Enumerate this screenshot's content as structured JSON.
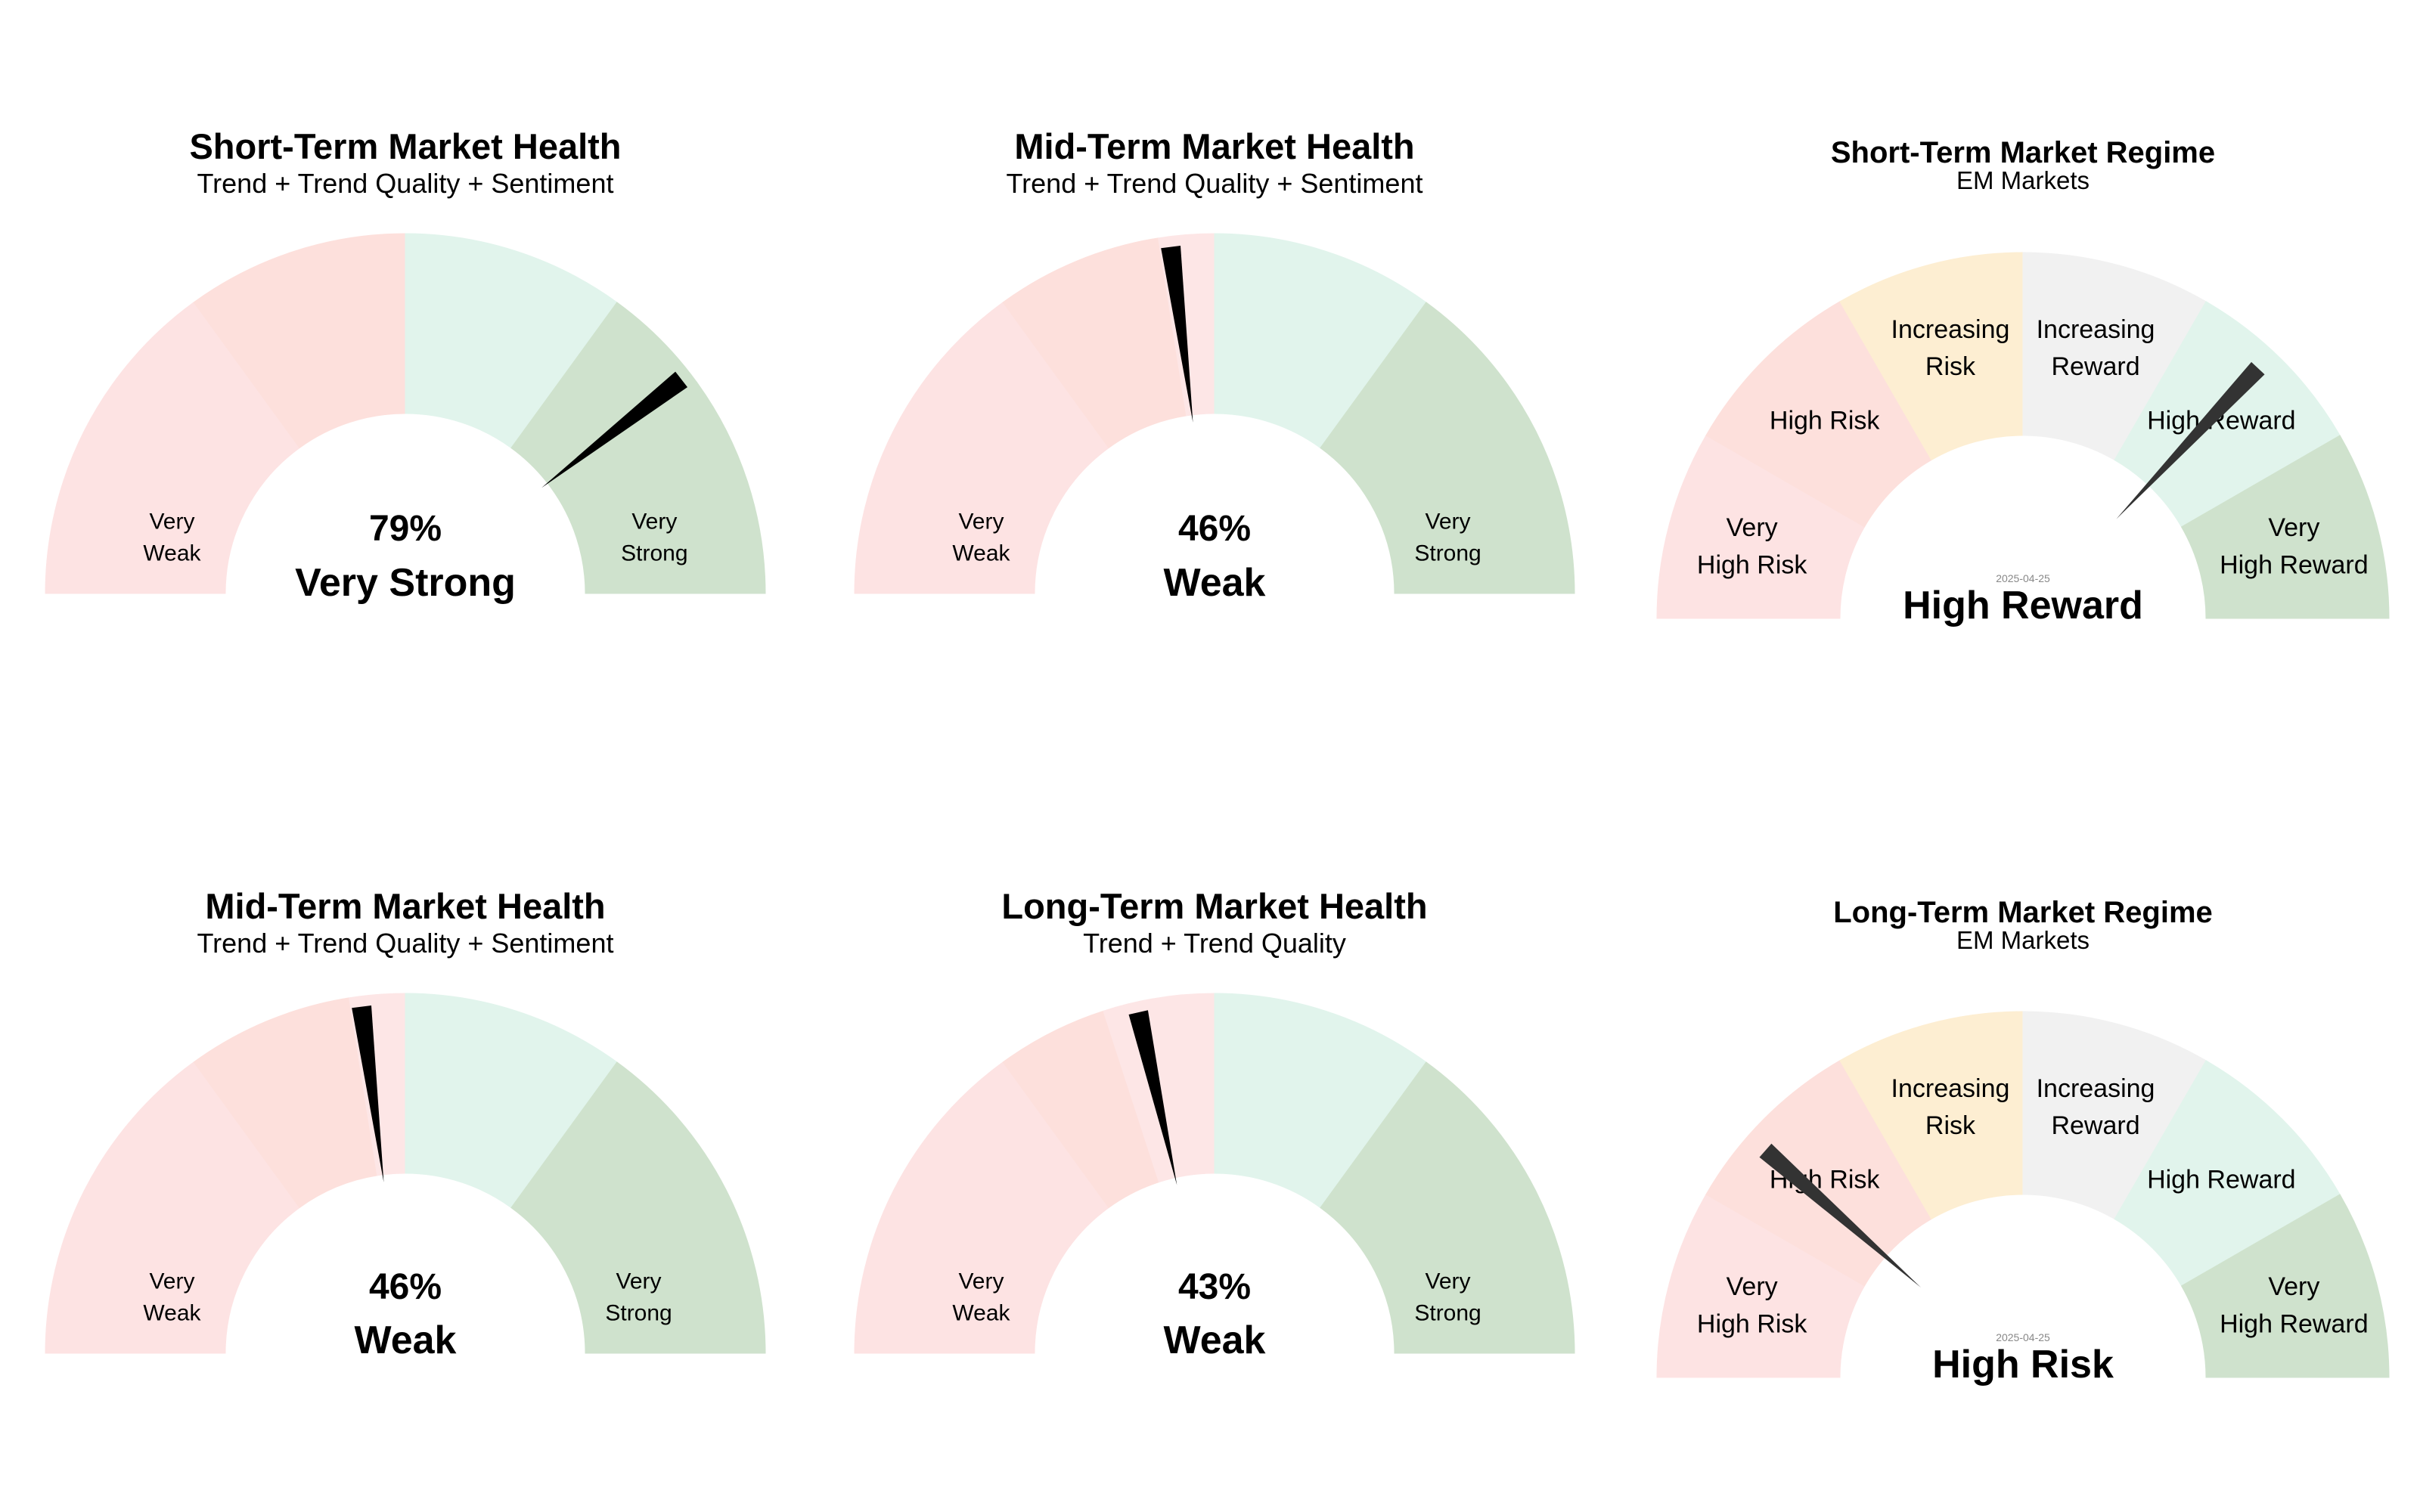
{
  "colors": {
    "very_weak": "#fde3e3",
    "weak": "#fde0dc",
    "neutral": "#fde6e6",
    "strong": "#e1f4ec",
    "very_strong": "#cfe2cd",
    "regime_very_high_risk": "#fde3e3",
    "regime_high_risk": "#fde0dc",
    "regime_increasing_risk": "#fdeed2",
    "regime_increasing_reward": "#f1f1f1",
    "regime_high_reward": "#e1f4ec",
    "regime_very_high_reward": "#cfe2cd",
    "needle_health": "#000000",
    "needle_regime": "#333333"
  },
  "chart_data": [
    {
      "type": "gauge",
      "title": "Short-Term Market Health",
      "subtitle": "Trend + Trend Quality + Sentiment",
      "value": 79,
      "value_label": "79%",
      "rating": "Very Strong",
      "range": [
        0,
        100
      ],
      "segments": [
        {
          "from": 0,
          "to": 30,
          "color_key": "very_weak",
          "label_lines": [
            "Very",
            "Weak"
          ]
        },
        {
          "from": 30,
          "to": 50,
          "color_key": "weak",
          "label_lines": []
        },
        {
          "from": 50,
          "to": 70,
          "color_key": "strong",
          "label_lines": []
        },
        {
          "from": 70,
          "to": 80,
          "color_key": "very_strong",
          "label_lines": []
        },
        {
          "from": 80,
          "to": 100,
          "color_key": "very_strong",
          "label_lines": [
            "Very",
            "Strong"
          ]
        }
      ]
    },
    {
      "type": "gauge",
      "title": "Mid-Term Market Health",
      "subtitle": "Trend + Trend Quality + Sentiment",
      "value": 46,
      "value_label": "46%",
      "rating": "Weak",
      "range": [
        0,
        100
      ],
      "segments": [
        {
          "from": 0,
          "to": 30,
          "color_key": "very_weak",
          "label_lines": [
            "Very",
            "Weak"
          ]
        },
        {
          "from": 30,
          "to": 45,
          "color_key": "weak",
          "label_lines": []
        },
        {
          "from": 45,
          "to": 50,
          "color_key": "neutral",
          "label_lines": []
        },
        {
          "from": 50,
          "to": 70,
          "color_key": "strong",
          "label_lines": []
        },
        {
          "from": 70,
          "to": 100,
          "color_key": "very_strong",
          "label_lines": [
            "Very",
            "Strong"
          ]
        }
      ]
    },
    {
      "type": "gauge",
      "title": "Short-Term Market Regime",
      "subtitle": "EM Markets",
      "date": "2025-04-25",
      "value": 74,
      "rating": "High Reward",
      "range": [
        0,
        100
      ],
      "segments": [
        {
          "from": 0,
          "to": 16.67,
          "color_key": "regime_very_high_risk",
          "label_lines": [
            "Very",
            "High Risk"
          ]
        },
        {
          "from": 16.67,
          "to": 33.33,
          "color_key": "regime_high_risk",
          "label_lines": [
            "High Risk"
          ]
        },
        {
          "from": 33.33,
          "to": 50,
          "color_key": "regime_increasing_risk",
          "label_lines": [
            "Increasing",
            "Risk"
          ]
        },
        {
          "from": 50,
          "to": 66.67,
          "color_key": "regime_increasing_reward",
          "label_lines": [
            "Increasing",
            "Reward"
          ]
        },
        {
          "from": 66.67,
          "to": 83.33,
          "color_key": "regime_high_reward",
          "label_lines": [
            "High Reward"
          ]
        },
        {
          "from": 83.33,
          "to": 100,
          "color_key": "regime_very_high_reward",
          "label_lines": [
            "Very",
            "High Reward"
          ]
        }
      ]
    },
    {
      "type": "gauge",
      "title": "Mid-Term Market Health",
      "subtitle": "Trend + Trend Quality + Sentiment",
      "value": 46,
      "value_label": "46%",
      "rating": "Weak",
      "range": [
        0,
        100
      ],
      "segments": [
        {
          "from": 0,
          "to": 30,
          "color_key": "very_weak",
          "label_lines": [
            "Very",
            "Weak"
          ]
        },
        {
          "from": 30,
          "to": 45,
          "color_key": "weak",
          "label_lines": []
        },
        {
          "from": 45,
          "to": 50,
          "color_key": "neutral",
          "label_lines": []
        },
        {
          "from": 50,
          "to": 70,
          "color_key": "strong",
          "label_lines": []
        },
        {
          "from": 70,
          "to": 100,
          "color_key": "very_strong",
          "label_lines": [
            "Very",
            "Strong"
          ]
        }
      ]
    },
    {
      "type": "gauge",
      "title": "Long-Term Market Health",
      "subtitle": "Trend + Trend Quality",
      "value": 43,
      "value_label": "43%",
      "rating": "Weak",
      "range": [
        0,
        100
      ],
      "segments": [
        {
          "from": 0,
          "to": 30,
          "color_key": "very_weak",
          "label_lines": [
            "Very",
            "Weak"
          ]
        },
        {
          "from": 30,
          "to": 40,
          "color_key": "weak",
          "label_lines": []
        },
        {
          "from": 40,
          "to": 50,
          "color_key": "neutral",
          "label_lines": []
        },
        {
          "from": 50,
          "to": 70,
          "color_key": "strong",
          "label_lines": []
        },
        {
          "from": 70,
          "to": 100,
          "color_key": "very_strong",
          "label_lines": [
            "Very",
            "Strong"
          ]
        }
      ]
    },
    {
      "type": "gauge",
      "title": "Long-Term Market Regime",
      "subtitle": "EM Markets",
      "date": "2025-04-25",
      "value": 23,
      "rating": "High Risk",
      "range": [
        0,
        100
      ],
      "segments": [
        {
          "from": 0,
          "to": 16.67,
          "color_key": "regime_very_high_risk",
          "label_lines": [
            "Very",
            "High Risk"
          ]
        },
        {
          "from": 16.67,
          "to": 33.33,
          "color_key": "regime_high_risk",
          "label_lines": [
            "High Risk"
          ]
        },
        {
          "from": 33.33,
          "to": 50,
          "color_key": "regime_increasing_risk",
          "label_lines": [
            "Increasing",
            "Risk"
          ]
        },
        {
          "from": 50,
          "to": 66.67,
          "color_key": "regime_increasing_reward",
          "label_lines": [
            "Increasing",
            "Reward"
          ]
        },
        {
          "from": 66.67,
          "to": 83.33,
          "color_key": "regime_high_reward",
          "label_lines": [
            "High Reward"
          ]
        },
        {
          "from": 83.33,
          "to": 100,
          "color_key": "regime_very_high_reward",
          "label_lines": [
            "Very",
            "High Reward"
          ]
        }
      ]
    }
  ]
}
